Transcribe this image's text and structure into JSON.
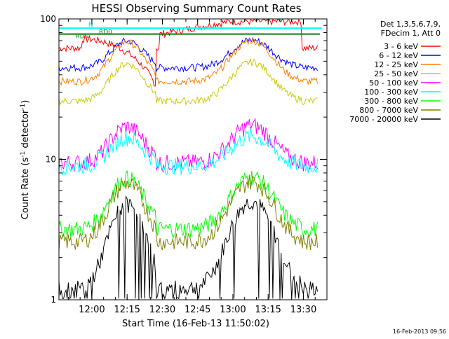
{
  "chart_data": {
    "type": "line",
    "title": "HESSI Observing Summary Count Rates",
    "xlabel": "Start Time (16-Feb-13 11:50:02)",
    "ylabel": "Count Rate (s",
    "ylabel_sup": "-1",
    "ylabel_tail": " detector",
    "ylabel_end": ")",
    "y_scale": "log",
    "ylim": [
      1,
      100
    ],
    "y_ticks": [
      {
        "value": 1,
        "label": "1"
      },
      {
        "value": 10,
        "label": "10"
      },
      {
        "value": 100,
        "label": "100"
      }
    ],
    "xlim_minutes": [
      -14,
      100
    ],
    "x_ticks": [
      {
        "minute": 0,
        "label": "12:00"
      },
      {
        "minute": 15,
        "label": "12:15"
      },
      {
        "minute": 30,
        "label": "12:30"
      },
      {
        "minute": 45,
        "label": "12:45"
      },
      {
        "minute": 60,
        "label": "13:00"
      },
      {
        "minute": 75,
        "label": "13:15"
      },
      {
        "minute": 90,
        "label": "13:30"
      }
    ],
    "grid": false,
    "legend_position": "right",
    "legend_header": [
      "Det 1,3,5,6,7,9,",
      "FDecim 1, Att 0"
    ],
    "flags": [
      {
        "label": "RDS",
        "color": "#007f00"
      },
      {
        "label": "RD0",
        "color": "#007f00"
      },
      {
        "label": "N",
        "color": "#00cccc"
      }
    ],
    "series": [
      {
        "name": "3 - 6 keV",
        "color": "#ff0000"
      },
      {
        "name": "6 - 12 keV",
        "color": "#0000ff"
      },
      {
        "name": "12 - 25 keV",
        "color": "#ff7f00"
      },
      {
        "name": "25 - 50 keV",
        "color": "#cccc00"
      },
      {
        "name": "50 - 100 keV",
        "color": "#ff00ff"
      },
      {
        "name": "100 - 300 keV",
        "color": "#00ffff"
      },
      {
        "name": "300 - 800 keV",
        "color": "#00ff00"
      },
      {
        "name": "800 - 7000 keV",
        "color": "#808000"
      },
      {
        "name": "7000 - 20000 keV",
        "color": "#000000"
      }
    ],
    "segments": [
      {
        "x": [
          -14,
          -4
        ],
        "series": [
          [
            62,
            45,
            36,
            26,
            9.5,
            9,
            3.2,
            2.6,
            1.2
          ]
        ]
      }
    ],
    "curves": {
      "x_start": -14,
      "x_end": 98,
      "step": 1,
      "comment_free": true
    },
    "timestamp": "16-Feb-2013 09:56"
  }
}
